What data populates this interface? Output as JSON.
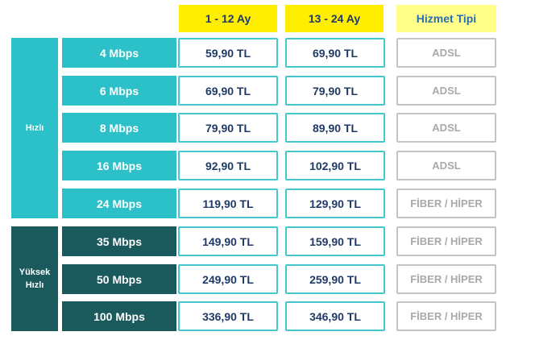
{
  "header": {
    "period1": "1 - 12 Ay",
    "period2": "13 - 24 Ay",
    "service": "Hizmet Tipi"
  },
  "groups": {
    "fast": "Hızlı",
    "high_line1": "Yüksek",
    "high_line2": "Hızlı"
  },
  "rows": [
    {
      "speed": "4 Mbps",
      "price1": "59,90 TL",
      "price2": "69,90 TL",
      "service": "ADSL"
    },
    {
      "speed": "6 Mbps",
      "price1": "69,90 TL",
      "price2": "79,90 TL",
      "service": "ADSL"
    },
    {
      "speed": "8 Mbps",
      "price1": "79,90 TL",
      "price2": "89,90 TL",
      "service": "ADSL"
    },
    {
      "speed": "16 Mbps",
      "price1": "92,90 TL",
      "price2": "102,90 TL",
      "service": "ADSL"
    },
    {
      "speed": "24 Mbps",
      "price1": "119,90 TL",
      "price2": "129,90 TL",
      "service": "FİBER / HİPER"
    },
    {
      "speed": "35 Mbps",
      "price1": "149,90 TL",
      "price2": "159,90 TL",
      "service": "FİBER / HİPER"
    },
    {
      "speed": "50 Mbps",
      "price1": "249,90 TL",
      "price2": "259,90 TL",
      "service": "FİBER / HİPER"
    },
    {
      "speed": "100 Mbps",
      "price1": "336,90 TL",
      "price2": "346,90 TL",
      "service": "FİBER / HİPER"
    }
  ],
  "colors": {
    "fast": "#2cc0c8",
    "high": "#1a5a5c",
    "period_header": "#ffee00",
    "service_header": "#ffff8a",
    "price_text": "#1f3a66",
    "service_text": "#a9a9a9",
    "cell_border": "#44c7cd"
  }
}
